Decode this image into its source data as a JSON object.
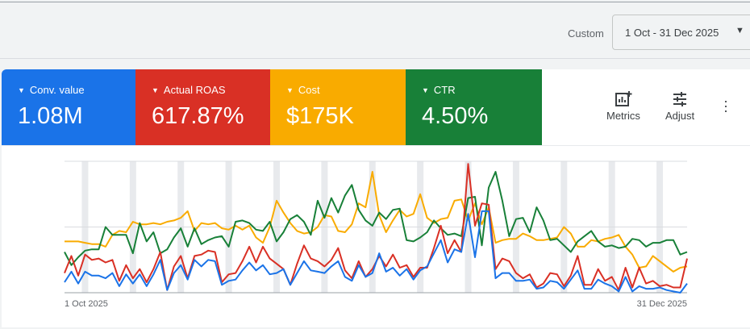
{
  "header": {
    "range_label": "Custom",
    "range_value": "1 Oct - 31 Dec 2025",
    "dropdown_icon": "caret-down"
  },
  "scorecards": [
    {
      "label": "Conv. value",
      "value": "1.08M",
      "color": "#1a73e8"
    },
    {
      "label": "Actual ROAS",
      "value": "617.87%",
      "color": "#d93025"
    },
    {
      "label": "Cost",
      "value": "$175K",
      "color": "#f9ab00"
    },
    {
      "label": "CTR",
      "value": "4.50%",
      "color": "#188038"
    }
  ],
  "toolbar": {
    "metrics_label": "Metrics",
    "adjust_label": "Adjust",
    "metrics_icon": "add-chart",
    "adjust_icon": "tune",
    "more_icon": "more-vert"
  },
  "chart_data": {
    "type": "line",
    "x_start": "1 Oct 2025",
    "x_end": "31 Dec 2025",
    "xtick_labels": [
      "1 Oct 2025",
      "31 Dec 2025"
    ],
    "ylim": [
      0,
      100
    ],
    "grid": true,
    "weekend_shading": true,
    "series": [
      {
        "color": "#f9ab00",
        "values": [
          39,
          39,
          39,
          38,
          37,
          37,
          35,
          44,
          47,
          46,
          54,
          52,
          52,
          53,
          52,
          54,
          55,
          57,
          62,
          47,
          53,
          52,
          53,
          49,
          48,
          51,
          48,
          51,
          42,
          38,
          50,
          70,
          61,
          53,
          47,
          45,
          46,
          50,
          59,
          58,
          47,
          46,
          52,
          68,
          65,
          92,
          59,
          46,
          55,
          63,
          58,
          60,
          75,
          57,
          53,
          56,
          57,
          70,
          71,
          55,
          68,
          52,
          65,
          38,
          40,
          41,
          41,
          45,
          43,
          40,
          40,
          41,
          42,
          50,
          45,
          35,
          35,
          40,
          39,
          41,
          42,
          44,
          35,
          29,
          19,
          20,
          28,
          24,
          20,
          16,
          19,
          20
        ]
      },
      {
        "color": "#188038",
        "values": [
          31,
          21,
          27,
          32,
          33,
          33,
          50,
          44,
          44,
          44,
          30,
          53,
          39,
          46,
          30,
          33,
          42,
          49,
          35,
          49,
          37,
          40,
          42,
          43,
          35,
          54,
          55,
          53,
          48,
          47,
          54,
          39,
          46,
          56,
          59,
          54,
          44,
          70,
          57,
          72,
          61,
          74,
          82,
          63,
          55,
          51,
          61,
          56,
          63,
          64,
          40,
          39,
          42,
          46,
          55,
          49,
          44,
          45,
          43,
          72,
          73,
          36,
          80,
          92,
          70,
          43,
          56,
          57,
          46,
          65,
          55,
          40,
          41,
          36,
          31,
          39,
          43,
          47,
          39,
          35,
          36,
          34,
          35,
          41,
          40,
          35,
          38,
          38,
          40,
          40,
          29,
          31
        ]
      },
      {
        "color": "#d93025",
        "values": [
          15,
          28,
          13,
          29,
          25,
          26,
          23,
          25,
          9,
          21,
          11,
          18,
          8,
          18,
          31,
          2,
          20,
          28,
          11,
          28,
          29,
          32,
          31,
          8,
          14,
          15,
          24,
          35,
          23,
          35,
          26,
          22,
          18,
          6,
          22,
          36,
          26,
          24,
          20,
          25,
          34,
          17,
          11,
          24,
          12,
          18,
          28,
          20,
          29,
          19,
          21,
          12,
          19,
          19,
          34,
          51,
          30,
          40,
          31,
          98,
          51,
          68,
          67,
          18,
          26,
          24,
          15,
          11,
          14,
          4,
          7,
          15,
          14,
          5,
          13,
          28,
          6,
          6,
          18,
          9,
          12,
          2,
          19,
          4,
          19,
          7,
          9,
          5,
          6,
          4,
          4,
          26
        ]
      },
      {
        "color": "#1a73e8",
        "values": [
          8,
          16,
          7,
          16,
          13,
          13,
          11,
          15,
          5,
          14,
          7,
          14,
          5,
          14,
          25,
          2,
          15,
          21,
          10,
          25,
          20,
          25,
          24,
          6,
          9,
          10,
          17,
          23,
          17,
          21,
          14,
          15,
          18,
          6,
          15,
          24,
          17,
          16,
          15,
          20,
          24,
          12,
          9,
          21,
          12,
          15,
          30,
          16,
          19,
          13,
          18,
          10,
          17,
          20,
          30,
          40,
          23,
          33,
          31,
          60,
          27,
          62,
          62,
          11,
          15,
          15,
          9,
          9,
          10,
          3,
          4,
          9,
          8,
          3,
          10,
          17,
          3,
          3,
          10,
          7,
          5,
          1,
          12,
          1,
          5,
          3,
          3,
          4,
          2,
          1,
          0,
          7
        ]
      }
    ]
  }
}
